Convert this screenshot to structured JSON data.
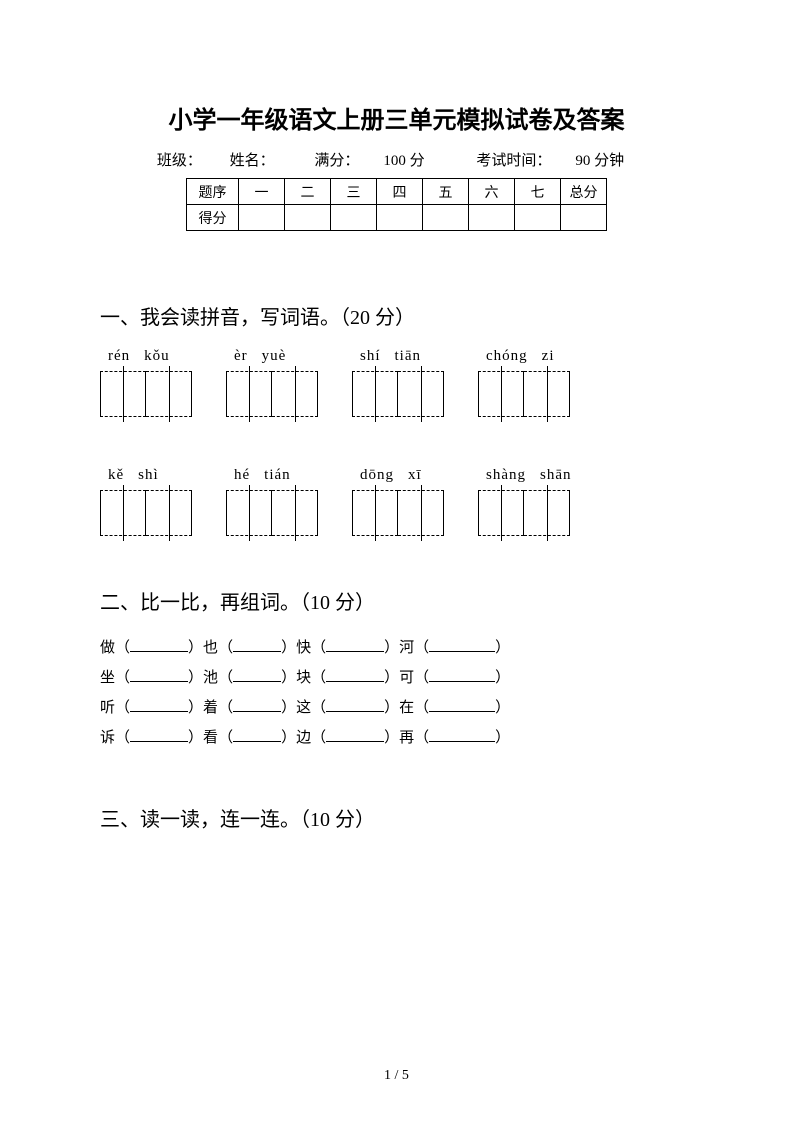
{
  "title": "小学一年级语文上册三单元模拟试卷及答案",
  "info": {
    "class_label": "班级：",
    "name_label": "姓名：",
    "full_label": "满分：",
    "full_value": "100 分",
    "time_label": "考试时间：",
    "time_value": "90 分钟"
  },
  "score_table": {
    "row1": {
      "label": "题序",
      "cols": [
        "一",
        "二",
        "三",
        "四",
        "五",
        "六",
        "七",
        "总分"
      ]
    },
    "row2": {
      "label": "得分",
      "cols": [
        "",
        "",
        "",
        "",
        "",
        "",
        "",
        ""
      ]
    }
  },
  "section1": {
    "title": "一、我会读拼音，写词语。（20 分）",
    "row_a": [
      {
        "p1": "rén",
        "p2": "kǒu"
      },
      {
        "p1": "èr",
        "p2": "yuè"
      },
      {
        "p1": "shí",
        "p2": "tiān"
      },
      {
        "p1": "chóng",
        "p2": "zi"
      }
    ],
    "row_b": [
      {
        "p1": "kě",
        "p2": "shì"
      },
      {
        "p1": "hé",
        "p2": "tián"
      },
      {
        "p1": "dōng",
        "p2": "xī"
      },
      {
        "p1": "shàng",
        "p2": "shān"
      }
    ]
  },
  "section2": {
    "title": "二、比一比，再组词。（10 分）",
    "lines": [
      {
        "a": "做",
        "b": "也",
        "c": "快",
        "d": "河"
      },
      {
        "a": "坐",
        "b": "池",
        "c": "块",
        "d": "可"
      },
      {
        "a": "听",
        "b": "着",
        "c": "这",
        "d": "在"
      },
      {
        "a": "诉",
        "b": "看",
        "c": "边",
        "d": "再"
      }
    ]
  },
  "section3": {
    "title": "三、读一读，连一连。（10 分）"
  },
  "page_number": "1 / 5",
  "colors": {
    "text": "#000000",
    "bg": "#ffffff"
  }
}
